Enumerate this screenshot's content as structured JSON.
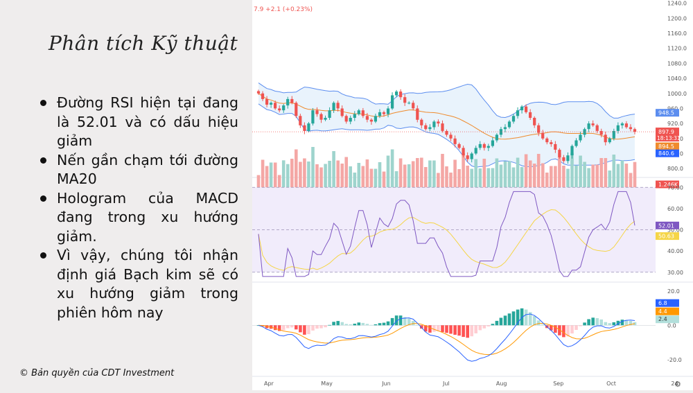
{
  "slide": {
    "title": "Phân tích Kỹ thuật",
    "bullets": [
      "Đường RSI hiện tại đang là 52.01 và có dấu hiệu giảm",
      "Nến gần chạm tới đường MA20",
      "Hologram của MACD đang trong xu hướng giảm.",
      "Vì vậy, chúng tôi nhận định giá Bạch kim sẽ có xu hướng giảm trong phiên hôm nay"
    ],
    "copyright": "© Bản quyền của CDT Investment"
  },
  "chart_data": {
    "type": "line",
    "header_text": "7.9  +2.1 (+0.23%)",
    "time_labels": [
      "Apr",
      "May",
      "Jun",
      "Jul",
      "Aug",
      "Sep",
      "Oct",
      "24"
    ],
    "colors": {
      "up": "#26a69a",
      "down": "#ef5350",
      "band": "#5b8def",
      "ma": "#ef8a2b",
      "rsi": "#7e57c2",
      "rsi_ma": "#f5d547",
      "macd": "#2962ff",
      "signal": "#ff9800"
    },
    "price_panel": {
      "axis_ticks": [
        "1240.0",
        "1200.0",
        "1160.0",
        "1120.0",
        "1080.0",
        "1040.0",
        "1000.0",
        "960.0",
        "920.0",
        "880.0",
        "840.0",
        "800.0"
      ],
      "ylim": [
        780,
        1245
      ],
      "close": [
        1000,
        985,
        970,
        975,
        960,
        955,
        968,
        985,
        975,
        940,
        915,
        900,
        920,
        955,
        945,
        930,
        935,
        955,
        975,
        960,
        940,
        925,
        935,
        945,
        955,
        940,
        930,
        925,
        940,
        950,
        945,
        960,
        995,
        1005,
        990,
        975,
        975,
        960,
        930,
        915,
        905,
        910,
        925,
        920,
        900,
        890,
        880,
        865,
        855,
        835,
        825,
        840,
        855,
        865,
        855,
        860,
        875,
        890,
        905,
        910,
        925,
        940,
        955,
        965,
        950,
        935,
        915,
        895,
        880,
        870,
        865,
        850,
        830,
        820,
        835,
        860,
        875,
        890,
        905,
        920,
        915,
        900,
        890,
        870,
        880,
        900,
        915,
        920,
        910,
        905,
        898
      ],
      "upper_band_latest": "948.5",
      "last_price": "897.9",
      "countdown": "18:13:31",
      "ma20_latest": "894.5",
      "lower_band_latest": "840.6",
      "volume_latest": "1.246K"
    },
    "rsi_panel": {
      "axis_ticks": [
        "70.00",
        "60.00",
        "50.00",
        "40.00",
        "30.00"
      ],
      "ylim": [
        26,
        74
      ],
      "levels": [
        70,
        50,
        30
      ],
      "rsi_latest": "52.01",
      "rsi_ma_latest": "50.63"
    },
    "macd_panel": {
      "axis_ticks": [
        "20.0",
        "0.0",
        "-20.0"
      ],
      "ylim": [
        -29,
        24
      ],
      "macd_latest": "6.8",
      "signal_latest": "4.4",
      "hist_latest": "2.4"
    }
  }
}
